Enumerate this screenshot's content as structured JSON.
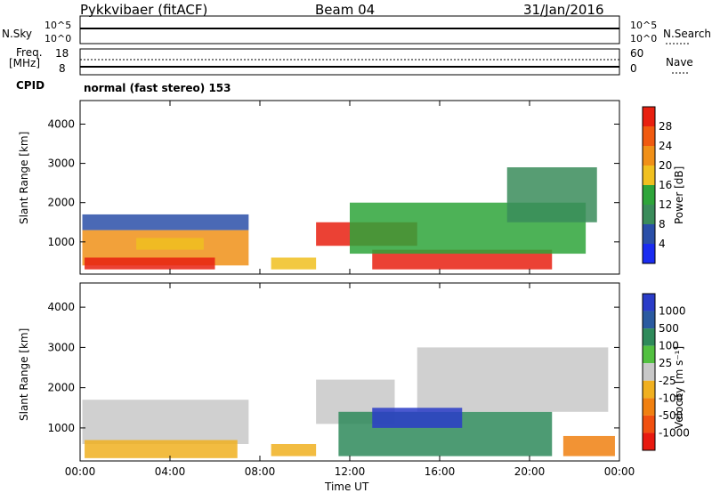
{
  "header": {
    "station": "Pykkvibaer (fitACF)",
    "beam": "Beam 04",
    "date": "31/Jan/2016"
  },
  "status_panels": {
    "nsky_label": "N.Sky",
    "nsky_top": "10^5",
    "nsky_bottom": "10^0",
    "nsearch_label": "N.Search",
    "nsearch_top": "10^5",
    "nsearch_bottom": "10^0",
    "freq_label_1": "Freq.",
    "freq_label_2": "[MHz]",
    "freq_top": "18",
    "freq_bottom": "8",
    "nave_label": "Nave",
    "nave_top": "60",
    "nave_bottom": "0",
    "cpid_label": "CPID",
    "cpid_text": "normal (fast stereo) 153"
  },
  "chart_data": [
    {
      "type": "heatmap",
      "name": "power",
      "ylabel": "Slant Range [km]",
      "xlabel": "Time UT",
      "x_ticks": [
        "00:00",
        "04:00",
        "08:00",
        "12:00",
        "16:00",
        "20:00",
        "00:00"
      ],
      "y_ticks": [
        1000,
        2000,
        3000,
        4000
      ],
      "xlim_hours": [
        0,
        24
      ],
      "ylim_km": [
        180,
        4600
      ],
      "colorbar": {
        "label": "Power [dB]",
        "ticks": [
          "4",
          "8",
          "12",
          "16",
          "20",
          "24",
          "28"
        ],
        "colors": [
          "#1a2cf0",
          "#2a4fa8",
          "#3a8c5a",
          "#2ea53a",
          "#f0c020",
          "#f09018",
          "#f05a10",
          "#e82010"
        ]
      },
      "regions": [
        {
          "t0": 0.1,
          "t1": 7.5,
          "r0": 400,
          "r1": 1300,
          "level": 5
        },
        {
          "t0": 0.2,
          "t1": 6.0,
          "r0": 300,
          "r1": 600,
          "level": 7
        },
        {
          "t0": 2.5,
          "t1": 5.5,
          "r0": 800,
          "r1": 1100,
          "level": 4
        },
        {
          "t0": 10.5,
          "t1": 15.0,
          "r0": 900,
          "r1": 1500,
          "level": 7
        },
        {
          "t0": 13.0,
          "t1": 21.0,
          "r0": 300,
          "r1": 800,
          "level": 7
        },
        {
          "t0": 12.0,
          "t1": 22.5,
          "r0": 700,
          "r1": 2000,
          "level": 3
        },
        {
          "t0": 19.0,
          "t1": 23.0,
          "r0": 1500,
          "r1": 2900,
          "level": 2
        },
        {
          "t0": 0.1,
          "t1": 7.5,
          "r0": 1300,
          "r1": 1700,
          "level": 1
        },
        {
          "t0": 8.5,
          "t1": 10.5,
          "r0": 300,
          "r1": 600,
          "level": 4
        }
      ]
    },
    {
      "type": "heatmap",
      "name": "velocity",
      "ylabel": "Slant Range [km]",
      "xlabel": "Time UT",
      "x_ticks": [
        "00:00",
        "04:00",
        "08:00",
        "12:00",
        "16:00",
        "20:00",
        "00:00"
      ],
      "y_ticks": [
        1000,
        2000,
        3000,
        4000
      ],
      "xlim_hours": [
        0,
        24
      ],
      "ylim_km": [
        180,
        4600
      ],
      "colorbar": {
        "label": "Velocity [m s⁻¹]",
        "ticks": [
          "1000",
          "500",
          "100",
          "25",
          "-25",
          "-100",
          "-500",
          "-1000"
        ],
        "colors": [
          "#2a3cc8",
          "#2a5aa0",
          "#2e8a5a",
          "#52c040",
          "#c8c8c8",
          "#f0b020",
          "#f08010",
          "#f05010",
          "#e81a10"
        ]
      },
      "regions": [
        {
          "t0": 0.1,
          "t1": 7.5,
          "r0": 600,
          "r1": 1700,
          "level": 4
        },
        {
          "t0": 0.2,
          "t1": 7.0,
          "r0": 250,
          "r1": 700,
          "level": 5
        },
        {
          "t0": 10.5,
          "t1": 14.0,
          "r0": 1100,
          "r1": 2200,
          "level": 4
        },
        {
          "t0": 11.5,
          "t1": 21.0,
          "r0": 300,
          "r1": 1400,
          "level": 2
        },
        {
          "t0": 15.0,
          "t1": 23.5,
          "r0": 1400,
          "r1": 3000,
          "level": 4
        },
        {
          "t0": 21.5,
          "t1": 23.8,
          "r0": 300,
          "r1": 800,
          "level": 6
        },
        {
          "t0": 8.5,
          "t1": 10.5,
          "r0": 300,
          "r1": 600,
          "level": 5
        },
        {
          "t0": 13.0,
          "t1": 17.0,
          "r0": 1000,
          "r1": 1500,
          "level": 0
        }
      ]
    }
  ]
}
